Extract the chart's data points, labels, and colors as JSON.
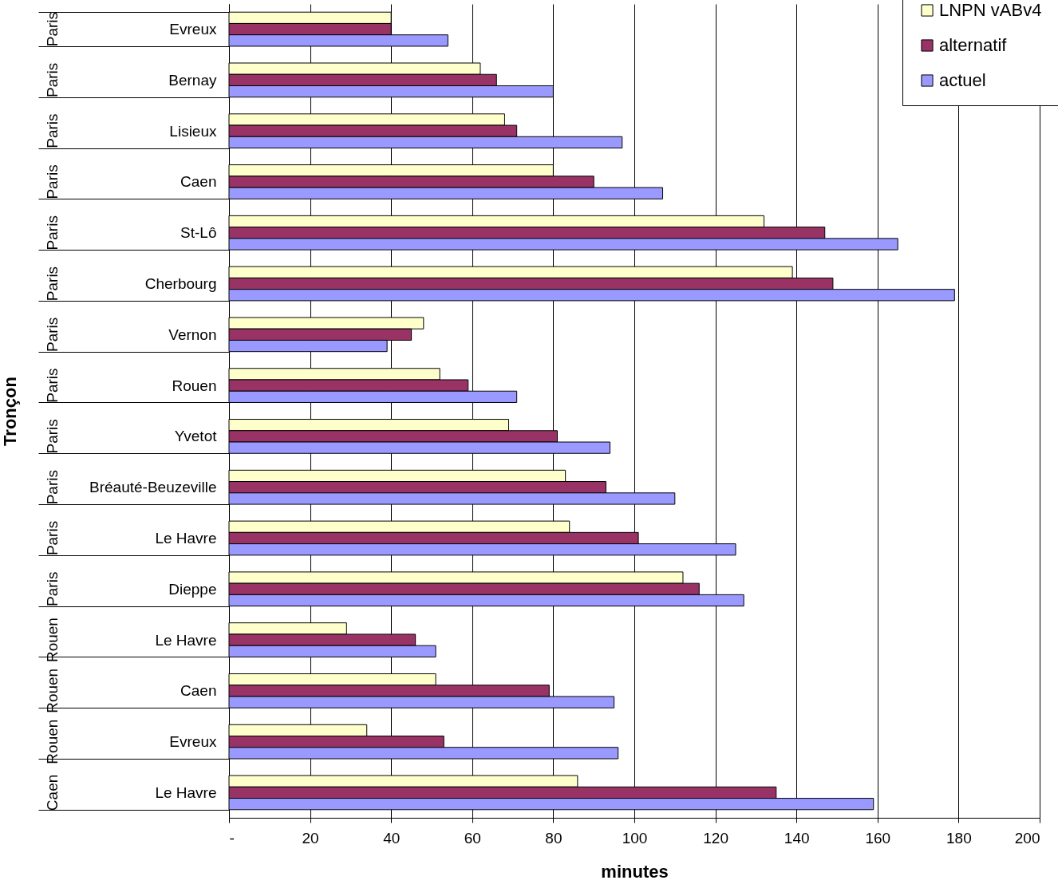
{
  "chart_data": {
    "type": "bar",
    "orientation": "horizontal",
    "xlabel": "minutes",
    "ylabel": "Tronçon",
    "categories": [
      "Evreux",
      "Bernay",
      "Lisieux",
      "Caen",
      "St-Lô",
      "Cherbourg",
      "Vernon",
      "Rouen",
      "Yvetot",
      "Bréauté-Beuzeville",
      "Le Havre",
      "Dieppe",
      "Le Havre",
      "Caen",
      "Evreux",
      "Le Havre"
    ],
    "annotations": [
      "Paris",
      "Paris",
      "Paris",
      "Paris",
      "Paris",
      "Paris",
      "Paris",
      "Paris",
      "Paris",
      "Paris",
      "Paris",
      "Paris",
      "Rouen",
      "Rouen",
      "Rouen",
      "Caen"
    ],
    "series": [
      {
        "name": "LNPN vABv4",
        "color": "#ffffcc",
        "values": [
          40,
          62,
          68,
          80,
          132,
          139,
          48,
          52,
          69,
          83,
          84,
          112,
          29,
          51,
          34,
          86
        ]
      },
      {
        "name": "alternatif",
        "color": "#993366",
        "values": [
          40,
          66,
          71,
          90,
          147,
          149,
          45,
          59,
          81,
          93,
          101,
          116,
          46,
          79,
          53,
          135
        ]
      },
      {
        "name": "actuel",
        "color": "#9999ff",
        "values": [
          54,
          80,
          97,
          107,
          165,
          179,
          39,
          71,
          94,
          110,
          125,
          127,
          51,
          95,
          96,
          159
        ]
      }
    ],
    "xlim": [
      0,
      200
    ],
    "xticks": [
      {
        "value": 0,
        "label": "-"
      },
      20,
      40,
      60,
      80,
      100,
      120,
      140,
      160,
      180,
      200
    ],
    "grid": "x",
    "legend": "top right"
  }
}
